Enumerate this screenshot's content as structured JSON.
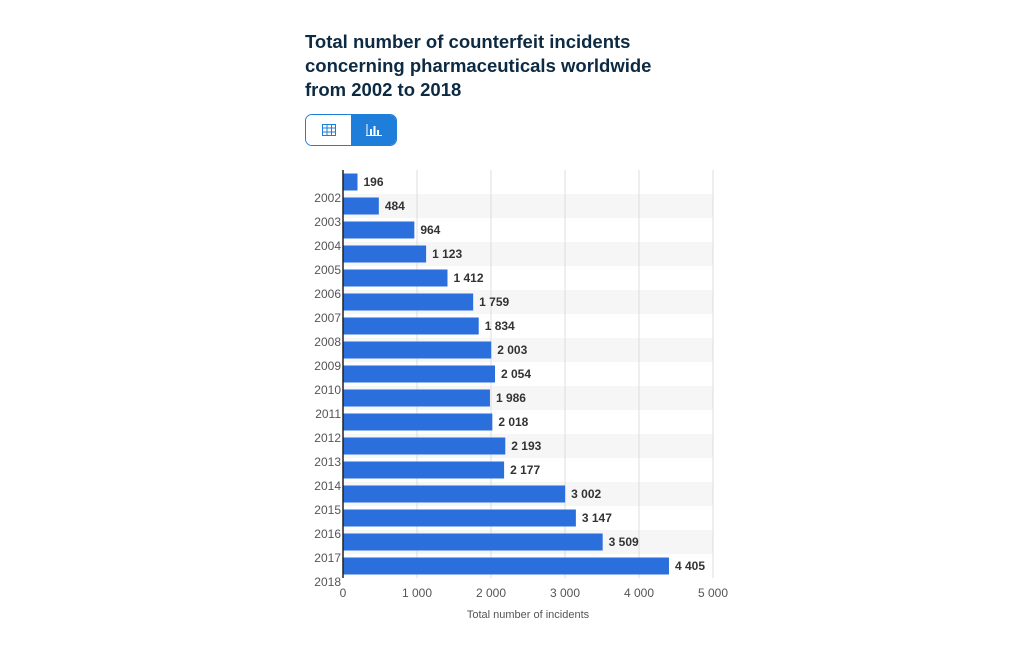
{
  "chart_data": {
    "type": "bar",
    "orientation": "horizontal",
    "title": "Total number of counterfeit incidents concerning pharmaceuticals worldwide from 2002 to 2018",
    "categories": [
      "2002",
      "2003",
      "2004",
      "2005",
      "2006",
      "2007",
      "2008",
      "2009",
      "2010",
      "2011",
      "2012",
      "2013",
      "2014",
      "2015",
      "2016",
      "2017",
      "2018"
    ],
    "values": [
      196,
      484,
      964,
      1123,
      1412,
      1759,
      1834,
      2003,
      2054,
      1986,
      2018,
      2193,
      2177,
      3002,
      3147,
      3509,
      4405
    ],
    "value_labels": [
      "196",
      "484",
      "964",
      "1 123",
      "1 412",
      "1 759",
      "1 834",
      "2 003",
      "2 054",
      "1 986",
      "2 018",
      "2 193",
      "2 177",
      "3 002",
      "3 147",
      "3 509",
      "4 405"
    ],
    "color": "#2a6fdb",
    "xlabel": "Total number of incidents",
    "xlim": [
      0,
      5000
    ],
    "xticks": [
      0,
      {
        "value": 1000,
        "label": "1 000"
      },
      {
        "value": 2000,
        "label": "2 000"
      },
      {
        "value": 3000,
        "label": "3 000"
      },
      {
        "value": 4000,
        "label": "4 000"
      },
      {
        "value": 5000,
        "label": "5 000"
      }
    ],
    "grid": true
  }
}
